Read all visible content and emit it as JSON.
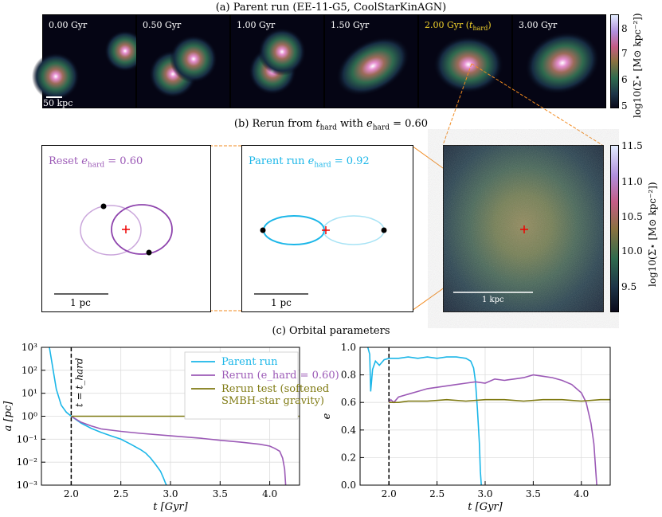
{
  "titles": {
    "a": "(a) Parent run (EE-11-G5, CoolStarKinAGN)",
    "b": "(b) Rerun from t_hard with e_hard = 0.60",
    "b_prefix": "(b) Rerun from ",
    "b_t": "t",
    "b_hard": "hard",
    "b_mid": " with ",
    "b_e": "e",
    "b_eq": " = 0.60",
    "c": "(c) Orbital parameters"
  },
  "snapshots": [
    {
      "label": "0.00 Gyr",
      "highlight": false
    },
    {
      "label": "0.50 Gyr",
      "highlight": false
    },
    {
      "label": "1.00 Gyr",
      "highlight": false
    },
    {
      "label": "1.50 Gyr",
      "highlight": false
    },
    {
      "label": "2.00 Gyr (t_hard)",
      "label_main": "2.00 Gyr (",
      "label_t": "t",
      "label_sub": "hard",
      "label_end": ")",
      "highlight": true
    },
    {
      "label": "3.00 Gyr",
      "highlight": false
    }
  ],
  "scalebar_a": "50 kpc",
  "colorbar_a": {
    "ticks": [
      "8",
      "7",
      "6",
      "5"
    ],
    "label": "log10(Σ⋆ [M⊙ kpc⁻²])"
  },
  "colorbar_b": {
    "ticks": [
      "11.5",
      "11.0",
      "10.5",
      "10.0",
      "9.5"
    ],
    "label": "log10(Σ⋆ [M⊙ kpc⁻²])"
  },
  "orbit_reset": {
    "title_prefix": "Reset ",
    "title_e": "e",
    "title_sub": "hard",
    "title_val": " = 0.60",
    "scalebar": "1 pc",
    "color": "#9b59b6"
  },
  "orbit_parent": {
    "title_prefix": "Parent run ",
    "title_e": "e",
    "title_sub": "hard",
    "title_val": " = 0.92",
    "scalebar": "1 pc",
    "color": "#1ab6e8"
  },
  "zoom_scalebar": "1 kpc",
  "chart_data": [
    {
      "type": "line",
      "title": "",
      "xlabel": "t [Gyr]",
      "ylabel": "a [pc]",
      "yscale": "log",
      "xlim": [
        1.7,
        4.3
      ],
      "ylim": [
        0.001,
        1000
      ],
      "xticks": [
        "2.0",
        "2.5",
        "3.0",
        "3.5",
        "4.0"
      ],
      "yticks": [
        "10³",
        "10²",
        "10¹",
        "10⁰",
        "10⁻¹",
        "10⁻²",
        "10⁻³"
      ],
      "vline": {
        "x": 2.0,
        "label": "t = t_hard"
      },
      "legend": "top-right",
      "series": [
        {
          "name": "Parent run",
          "color": "#1ab6e8",
          "x": [
            1.78,
            1.8,
            1.85,
            1.9,
            1.95,
            2.0,
            2.1,
            2.2,
            2.3,
            2.4,
            2.5,
            2.6,
            2.7,
            2.75,
            2.8,
            2.85,
            2.9,
            2.93,
            2.95,
            2.96
          ],
          "y": [
            1000,
            300,
            15,
            3,
            1.5,
            1.0,
            0.5,
            0.3,
            0.2,
            0.14,
            0.1,
            0.06,
            0.035,
            0.025,
            0.015,
            0.008,
            0.004,
            0.002,
            0.0012,
            0.001
          ]
        },
        {
          "name": "Rerun (e_hard = 0.60)",
          "color": "#9b59b6",
          "x": [
            2.0,
            2.1,
            2.2,
            2.3,
            2.5,
            2.7,
            3.0,
            3.3,
            3.5,
            3.7,
            3.9,
            4.0,
            4.05,
            4.1,
            4.13,
            4.15,
            4.16
          ],
          "y": [
            1.0,
            0.55,
            0.38,
            0.28,
            0.22,
            0.18,
            0.14,
            0.11,
            0.09,
            0.075,
            0.06,
            0.05,
            0.04,
            0.03,
            0.015,
            0.005,
            0.001
          ]
        },
        {
          "name": "Rerun test (softened SMBH-star gravity)",
          "color": "#7f7a12",
          "x": [
            2.0,
            2.5,
            3.0,
            3.5,
            4.0,
            4.3
          ],
          "y": [
            1.0,
            1.0,
            1.0,
            1.0,
            1.0,
            1.0
          ]
        }
      ]
    },
    {
      "type": "line",
      "title": "",
      "xlabel": "t [Gyr]",
      "ylabel": "e",
      "xlim": [
        1.7,
        4.3
      ],
      "ylim": [
        0.0,
        1.0
      ],
      "xticks": [
        "2.0",
        "2.5",
        "3.0",
        "3.5",
        "4.0"
      ],
      "yticks": [
        "1.0",
        "0.8",
        "0.6",
        "0.4",
        "0.2",
        "0.0"
      ],
      "vline": {
        "x": 2.0
      },
      "series": [
        {
          "name": "Parent run",
          "color": "#1ab6e8",
          "x": [
            1.78,
            1.8,
            1.81,
            1.83,
            1.86,
            1.9,
            1.95,
            2.0,
            2.1,
            2.2,
            2.3,
            2.4,
            2.5,
            2.6,
            2.7,
            2.8,
            2.85,
            2.88,
            2.9,
            2.92,
            2.94,
            2.95,
            2.96
          ],
          "y": [
            1.0,
            0.95,
            0.68,
            0.84,
            0.9,
            0.87,
            0.91,
            0.92,
            0.92,
            0.93,
            0.92,
            0.93,
            0.92,
            0.93,
            0.93,
            0.92,
            0.9,
            0.85,
            0.75,
            0.55,
            0.3,
            0.1,
            0.0
          ]
        },
        {
          "name": "Rerun (e_hard = 0.60)",
          "color": "#9b59b6",
          "x": [
            2.0,
            2.02,
            2.05,
            2.1,
            2.2,
            2.3,
            2.4,
            2.5,
            2.6,
            2.7,
            2.8,
            2.9,
            3.0,
            3.1,
            3.2,
            3.3,
            3.4,
            3.5,
            3.6,
            3.7,
            3.8,
            3.9,
            4.0,
            4.05,
            4.1,
            4.13,
            4.15,
            4.16
          ],
          "y": [
            0.6,
            0.62,
            0.6,
            0.64,
            0.66,
            0.68,
            0.7,
            0.71,
            0.72,
            0.73,
            0.74,
            0.75,
            0.74,
            0.77,
            0.76,
            0.77,
            0.78,
            0.8,
            0.79,
            0.78,
            0.76,
            0.73,
            0.67,
            0.6,
            0.45,
            0.3,
            0.1,
            0.0
          ]
        },
        {
          "name": "Rerun test (softened SMBH-star gravity)",
          "color": "#7f7a12",
          "x": [
            2.0,
            2.1,
            2.2,
            2.4,
            2.6,
            2.8,
            3.0,
            3.2,
            3.4,
            3.6,
            3.8,
            4.0,
            4.2,
            4.3
          ],
          "y": [
            0.6,
            0.6,
            0.61,
            0.61,
            0.62,
            0.61,
            0.62,
            0.62,
            0.61,
            0.62,
            0.62,
            0.61,
            0.62,
            0.62
          ]
        }
      ]
    }
  ]
}
